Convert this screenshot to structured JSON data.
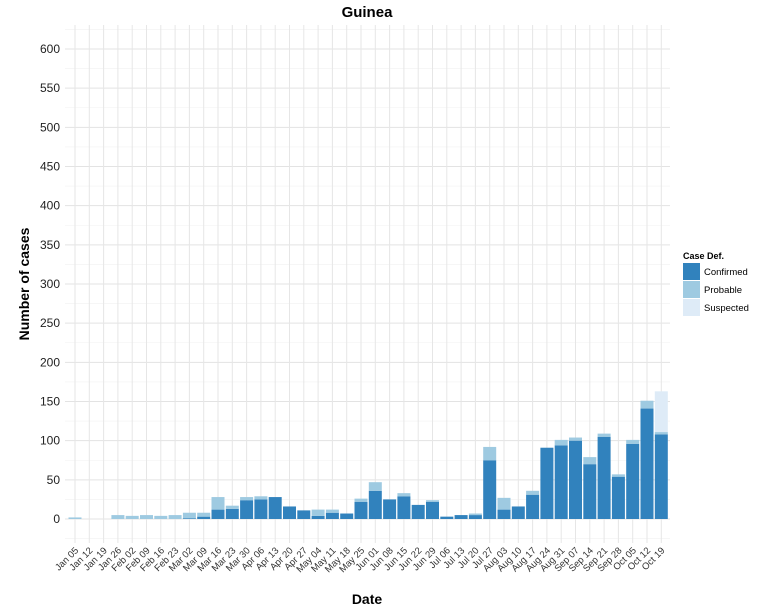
{
  "chart_data": {
    "type": "bar",
    "stacked": true,
    "title": "Guinea",
    "xlabel": "Date",
    "ylabel": "Number of cases",
    "ylim": [
      0,
      600
    ],
    "yticks": [
      0,
      50,
      100,
      150,
      200,
      250,
      300,
      350,
      400,
      450,
      500,
      550,
      600
    ],
    "grid": true,
    "legend": {
      "title": "Case Def.",
      "placement": "right"
    },
    "categories": [
      "Jan 05",
      "Jan 12",
      "Jan 19",
      "Jan 26",
      "Feb 02",
      "Feb 09",
      "Feb 16",
      "Feb 23",
      "Mar 02",
      "Mar 09",
      "Mar 16",
      "Mar 23",
      "Mar 30",
      "Apr 06",
      "Apr 13",
      "Apr 20",
      "Apr 27",
      "May 04",
      "May 11",
      "May 18",
      "May 25",
      "Jun 01",
      "Jun 08",
      "Jun 15",
      "Jun 22",
      "Jun 29",
      "Jul 06",
      "Jul 13",
      "Jul 20",
      "Jul 27",
      "Aug 03",
      "Aug 10",
      "Aug 17",
      "Aug 24",
      "Aug 31",
      "Sep 07",
      "Sep 14",
      "Sep 21",
      "Sep 28",
      "Oct 05",
      "Oct 12",
      "Oct 19"
    ],
    "series": [
      {
        "name": "Confirmed",
        "color": "#3182bd",
        "values": [
          0,
          0,
          0,
          0,
          0,
          0,
          0,
          0,
          1,
          3,
          12,
          13,
          24,
          25,
          28,
          16,
          11,
          4,
          8,
          7,
          22,
          36,
          25,
          29,
          18,
          22,
          3,
          5,
          5,
          75,
          12,
          16,
          31,
          91,
          94,
          100,
          70,
          105,
          54,
          96,
          141,
          108
        ]
      },
      {
        "name": "Probable",
        "color": "#9ecae1",
        "values": [
          2,
          0,
          0,
          5,
          4,
          5,
          4,
          5,
          7,
          5,
          16,
          4,
          4,
          4,
          0,
          0,
          0,
          8,
          4,
          0,
          4,
          11,
          0,
          4,
          0,
          2,
          0,
          0,
          2,
          17,
          15,
          0,
          5,
          0,
          7,
          4,
          9,
          4,
          3,
          5,
          10,
          3
        ]
      },
      {
        "name": "Suspected",
        "color": "#deebf7",
        "values": [
          0,
          0,
          0,
          0,
          0,
          0,
          0,
          0,
          0,
          0,
          0,
          0,
          0,
          0,
          0,
          0,
          0,
          0,
          0,
          0,
          0,
          0,
          0,
          0,
          0,
          0,
          0,
          0,
          0,
          0,
          0,
          0,
          0,
          0,
          0,
          0,
          0,
          0,
          0,
          0,
          0,
          52
        ]
      }
    ]
  }
}
